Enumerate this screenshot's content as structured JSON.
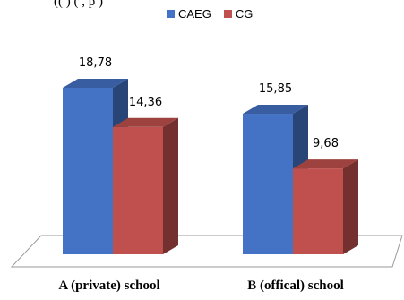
{
  "header": {
    "top_text": "((  )   (  ,        p   )"
  },
  "chart_data": {
    "type": "bar",
    "categories": [
      "A (private) school",
      "B (offical) school"
    ],
    "series": [
      {
        "name": "CAEG",
        "values": [
          18.78,
          15.85
        ],
        "labels": [
          "18,78",
          "15,85"
        ],
        "color": "#4472C4"
      },
      {
        "name": "CG",
        "values": [
          14.36,
          9.68
        ],
        "labels": [
          "14,36",
          "9,68"
        ],
        "color": "#C0504D"
      }
    ],
    "ylim": [
      0,
      22
    ],
    "grid": false,
    "legend_position": "top-center",
    "style": "3d-bar"
  }
}
